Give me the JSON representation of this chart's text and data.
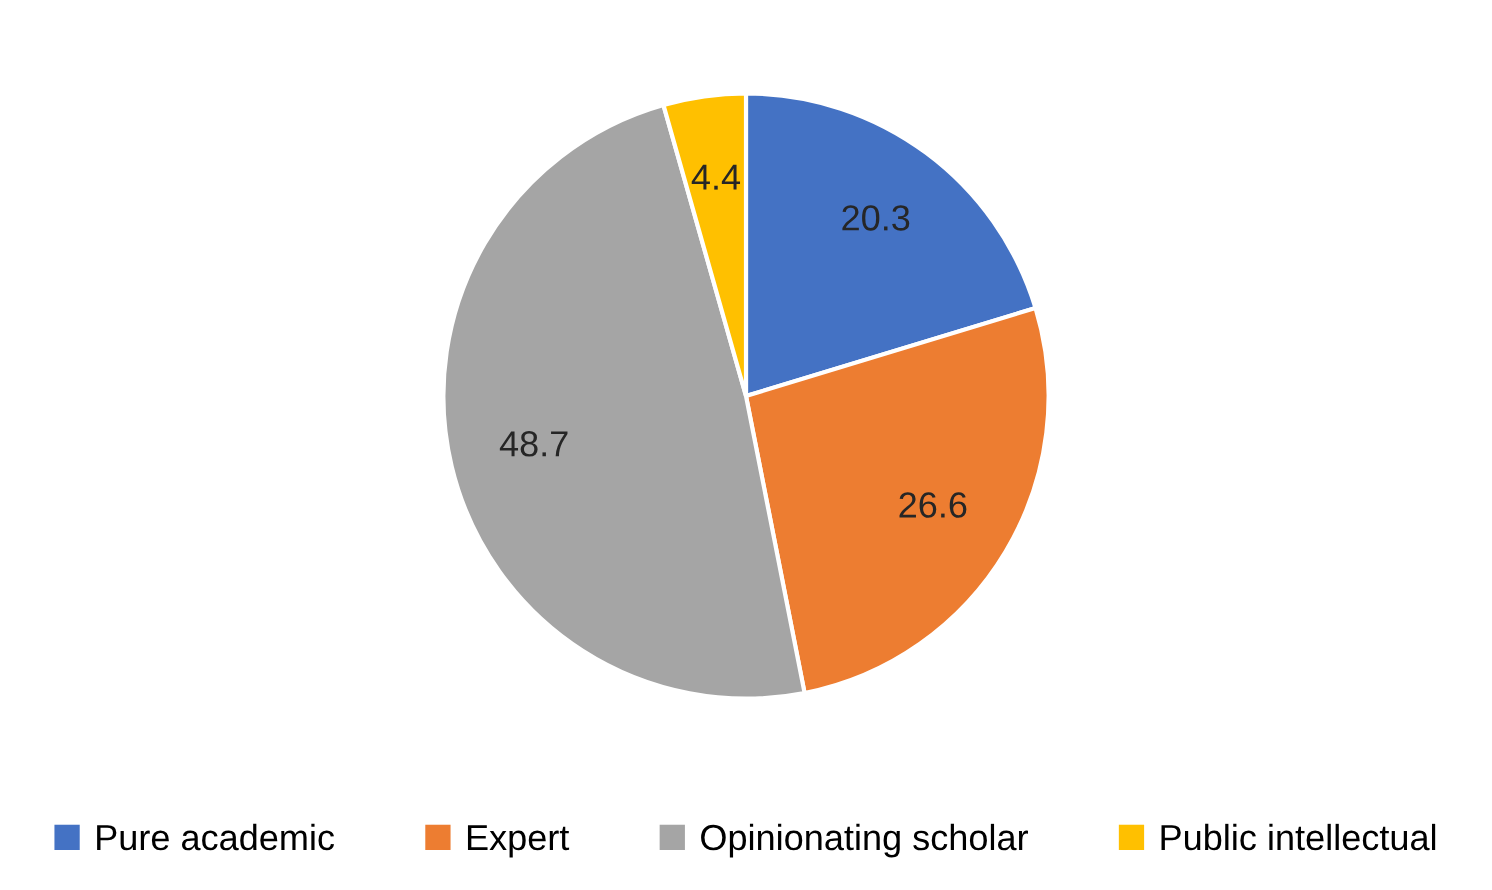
{
  "chart_data": {
    "type": "pie",
    "categories": [
      "Pure academic",
      "Expert",
      "Opinionating scholar",
      "Public intellectual"
    ],
    "values": [
      20.3,
      26.6,
      48.7,
      4.4
    ],
    "colors": [
      "#4472c4",
      "#ed7d31",
      "#a5a5a5",
      "#ffc000"
    ],
    "data_labels": true,
    "legend": "bottom"
  }
}
